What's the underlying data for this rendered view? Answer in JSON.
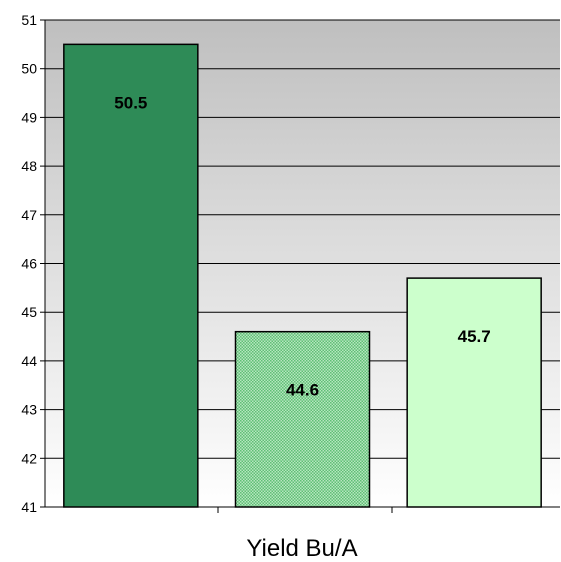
{
  "chart_data": {
    "type": "bar",
    "title": "",
    "xlabel": "Yield Bu/A",
    "ylabel": "",
    "ylim": [
      41,
      51
    ],
    "yticks": [
      41,
      42,
      43,
      44,
      45,
      46,
      47,
      48,
      49,
      50,
      51
    ],
    "grid": true,
    "legend": "none",
    "values": [
      50.5,
      44.6,
      45.7
    ],
    "value_labels": [
      "50.5",
      "44.6",
      "45.7"
    ],
    "colors": [
      "#2e8b57",
      "#7fd18f",
      "#ccffcc"
    ],
    "background_gradient": [
      "#bfbfbf",
      "#ffffff"
    ]
  }
}
